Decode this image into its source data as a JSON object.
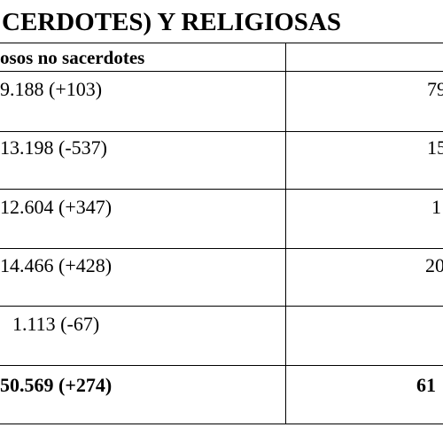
{
  "title": "CERDOTES) Y RELIGIOSAS",
  "table": {
    "header": [
      "osos no sacerdotes"
    ],
    "rows": [
      [
        "9.188 (+103)",
        "79"
      ],
      [
        "13.198 (-537)",
        "15"
      ],
      [
        "12.604 (+347)",
        "1"
      ],
      [
        "14.466 (+428)",
        "20"
      ],
      [
        "1.113 (-67)"
      ],
      [
        "50.569 (+274)",
        "61"
      ]
    ]
  }
}
